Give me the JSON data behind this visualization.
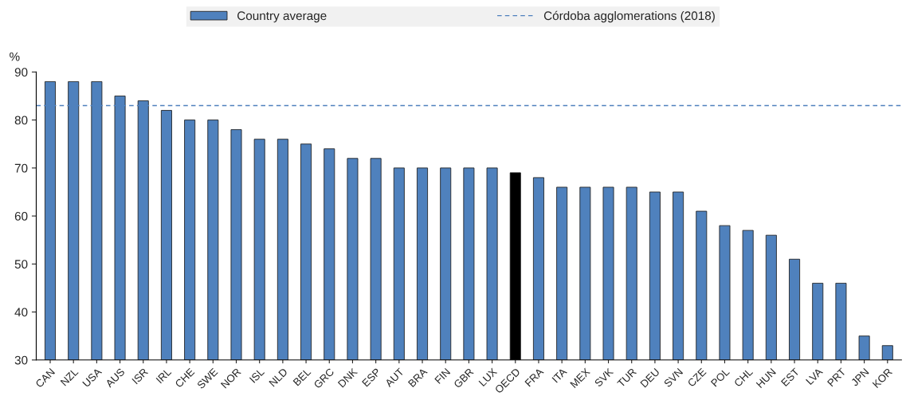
{
  "chart_data": {
    "type": "bar",
    "ylabel": "%",
    "categories": [
      "CAN",
      "NZL",
      "USA",
      "AUS",
      "ISR",
      "IRL",
      "CHE",
      "SWE",
      "NOR",
      "ISL",
      "NLD",
      "BEL",
      "GRC",
      "DNK",
      "ESP",
      "AUT",
      "BRA",
      "FIN",
      "GBR",
      "LUX",
      "OECD",
      "FRA",
      "ITA",
      "MEX",
      "SVK",
      "TUR",
      "DEU",
      "SVN",
      "CZE",
      "POL",
      "CHL",
      "HUN",
      "EST",
      "LVA",
      "PRT",
      "JPN",
      "KOR"
    ],
    "series": [
      {
        "name": "Country average",
        "color": "#4f81bd",
        "colors": [
          "#4f81bd",
          "#4f81bd",
          "#4f81bd",
          "#4f81bd",
          "#4f81bd",
          "#4f81bd",
          "#4f81bd",
          "#4f81bd",
          "#4f81bd",
          "#4f81bd",
          "#4f81bd",
          "#4f81bd",
          "#4f81bd",
          "#4f81bd",
          "#4f81bd",
          "#4f81bd",
          "#4f81bd",
          "#4f81bd",
          "#4f81bd",
          "#4f81bd",
          "#000000",
          "#4f81bd",
          "#4f81bd",
          "#4f81bd",
          "#4f81bd",
          "#4f81bd",
          "#4f81bd",
          "#4f81bd",
          "#4f81bd",
          "#4f81bd",
          "#4f81bd",
          "#4f81bd",
          "#4f81bd",
          "#4f81bd",
          "#4f81bd",
          "#4f81bd",
          "#4f81bd"
        ],
        "values": [
          88,
          88,
          88,
          85,
          84,
          82,
          80,
          80,
          78,
          76,
          76,
          75,
          74,
          72,
          72,
          70,
          70,
          70,
          70,
          70,
          69,
          68,
          66,
          66,
          66,
          66,
          65,
          65,
          61,
          58,
          57,
          56,
          51,
          46,
          46,
          35,
          33
        ]
      }
    ],
    "ref_lines": [
      {
        "axis": "y",
        "value": 83,
        "label": "Córdoba agglomerations (2018)",
        "color": "#4f81bd",
        "line_style": "dashed"
      }
    ],
    "ylim": [
      30,
      90
    ],
    "yticks": [
      30,
      40,
      50,
      60,
      70,
      80,
      90
    ],
    "grid": false,
    "legend": "top"
  }
}
